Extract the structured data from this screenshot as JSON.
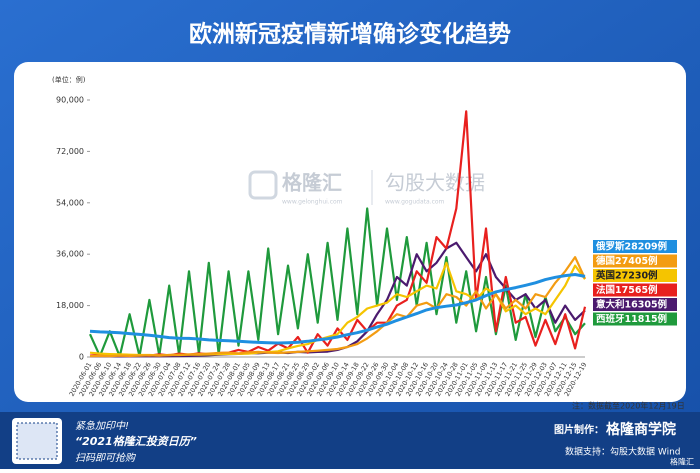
{
  "header": {
    "title": "欧洲新冠疫情新增确诊变化趋势"
  },
  "watermark": {
    "brand": "格隆汇",
    "brand_url": "www.gelonghui.com",
    "data_brand": "勾股大数据",
    "data_url": "www.gogudata.com"
  },
  "chart_data": {
    "type": "line",
    "y_unit": "(单位：例)",
    "note": "注：数据截至2020年12月19日",
    "legend": "right",
    "grid": false,
    "ylim": [
      0,
      90000
    ],
    "yticks": [
      0,
      {
        "value": 18000,
        "label": "18,000"
      },
      {
        "value": 36000,
        "label": "36,000"
      },
      {
        "value": 54000,
        "label": "54,000"
      },
      {
        "value": 72000,
        "label": "72,000"
      },
      {
        "value": 90000,
        "label": "90,000"
      }
    ],
    "categories": [
      "2020-06-01",
      "2020-06-06",
      "2020-06-10",
      "2020-06-14",
      "2020-06-18",
      "2020-06-22",
      "2020-06-26",
      "2020-06-30",
      "2020-07-04",
      "2020-07-08",
      "2020-07-12",
      "2020-07-16",
      "2020-07-20",
      "2020-07-24",
      "2020-07-28",
      "2020-08-01",
      "2020-08-05",
      "2020-08-09",
      "2020-08-13",
      "2020-08-17",
      "2020-08-21",
      "2020-08-25",
      "2020-08-29",
      "2020-09-02",
      "2020-09-06",
      "2020-09-10",
      "2020-09-14",
      "2020-09-18",
      "2020-09-22",
      "2020-09-26",
      "2020-09-30",
      "2020-10-04",
      "2020-10-08",
      "2020-10-12",
      "2020-10-16",
      "2020-10-20",
      "2020-10-24",
      "2020-10-28",
      "2020-11-01",
      "2020-11-05",
      "2020-11-09",
      "2020-11-13",
      "2020-11-17",
      "2020-11-21",
      "2020-11-25",
      "2020-11-29",
      "2020-12-03",
      "2020-12-07",
      "2020-12-11",
      "2020-12-15",
      "2020-12-19"
    ],
    "series": [
      {
        "name": "俄罗斯28209例",
        "color": "#1f8fe0",
        "values": [
          9000,
          8800,
          8700,
          8500,
          8200,
          7900,
          7600,
          7200,
          6800,
          6600,
          6500,
          6300,
          6000,
          5800,
          5700,
          5500,
          5300,
          5100,
          5000,
          4900,
          5000,
          5200,
          5500,
          6000,
          6400,
          7000,
          7800,
          8500,
          9400,
          10500,
          11500,
          12800,
          14000,
          15200,
          16500,
          17300,
          17800,
          18200,
          19000,
          20000,
          21500,
          22800,
          23600,
          24300,
          25100,
          26000,
          27100,
          27900,
          28500,
          28900,
          28209
        ]
      },
      {
        "name": "德国27405例",
        "color": "#f39c12",
        "values": [
          300,
          400,
          300,
          500,
          400,
          500,
          600,
          500,
          700,
          800,
          900,
          1000,
          1200,
          1400,
          1500,
          1300,
          1600,
          1800,
          1500,
          1400,
          1600,
          1800,
          2000,
          2200,
          2500,
          2800,
          3500,
          4500,
          6500,
          9000,
          12000,
          15000,
          14000,
          18000,
          19000,
          17000,
          22000,
          21000,
          18000,
          23000,
          17000,
          22000,
          17000,
          20000,
          17000,
          22000,
          21000,
          26000,
          30000,
          35000,
          27405
        ]
      },
      {
        "name": "英国27230例",
        "color": "#f5c400",
        "values": [
          1500,
          1200,
          1000,
          900,
          800,
          700,
          700,
          600,
          700,
          700,
          800,
          800,
          900,
          1000,
          1100,
          1100,
          1200,
          1500,
          1700,
          2000,
          3000,
          3900,
          4500,
          6000,
          7000,
          8000,
          12000,
          14000,
          17000,
          18000,
          19000,
          22000,
          21000,
          23000,
          25000,
          24000,
          33000,
          23000,
          22000,
          20000,
          24000,
          22000,
          16000,
          18000,
          15000,
          17000,
          15000,
          20000,
          25000,
          32000,
          27230
        ]
      },
      {
        "name": "法国17565例",
        "color": "#e8201e",
        "values": [
          500,
          800,
          400,
          600,
          300,
          700,
          500,
          900,
          600,
          1200,
          800,
          1300,
          900,
          1400,
          1500,
          2500,
          1800,
          3500,
          2200,
          4700,
          3000,
          7000,
          1500,
          8000,
          4000,
          10000,
          6000,
          13000,
          9000,
          12000,
          12000,
          18000,
          20000,
          30000,
          26000,
          42000,
          38000,
          52000,
          86000,
          20000,
          45000,
          9000,
          28000,
          12000,
          14000,
          4000,
          13000,
          4500,
          15000,
          3000,
          17565
        ]
      },
      {
        "name": "意大利16305例",
        "color": "#4b1a6e",
        "values": [
          300,
          300,
          250,
          200,
          250,
          300,
          250,
          250,
          300,
          350,
          400,
          500,
          600,
          800,
          1000,
          1100,
          1400,
          1300,
          1500,
          1600,
          1400,
          1800,
          1600,
          1800,
          1900,
          2500,
          3500,
          5500,
          9000,
          15000,
          20000,
          28000,
          25000,
          36000,
          30000,
          33000,
          38000,
          40000,
          35000,
          30000,
          36000,
          28000,
          24000,
          20000,
          22000,
          17000,
          20000,
          12000,
          18000,
          13000,
          16305
        ]
      },
      {
        "name": "西班牙11815例",
        "color": "#1f9a3c",
        "values": [
          8000,
          300,
          9000,
          200,
          15000,
          300,
          20000,
          500,
          25000,
          800,
          30000,
          1200,
          33000,
          1000,
          30000,
          4000,
          30000,
          6000,
          38000,
          8000,
          32000,
          10000,
          36000,
          12000,
          40000,
          13000,
          45000,
          15000,
          52000,
          18000,
          45000,
          20000,
          42000,
          18000,
          40000,
          15000,
          35000,
          12000,
          30000,
          9000,
          28000,
          8000,
          25000,
          6000,
          22000,
          7000,
          21000,
          9000,
          14000,
          8000,
          11815
        ]
      }
    ]
  },
  "footer": {
    "urgent": "紧急加印中!",
    "product": "“2021格隆汇投资日历”",
    "action": "扫码即可抢购",
    "maker_label": "图片制作：",
    "maker": "格隆商学院",
    "source": "数据支持：勾股大数据 Wind",
    "logo": "格隆汇"
  }
}
